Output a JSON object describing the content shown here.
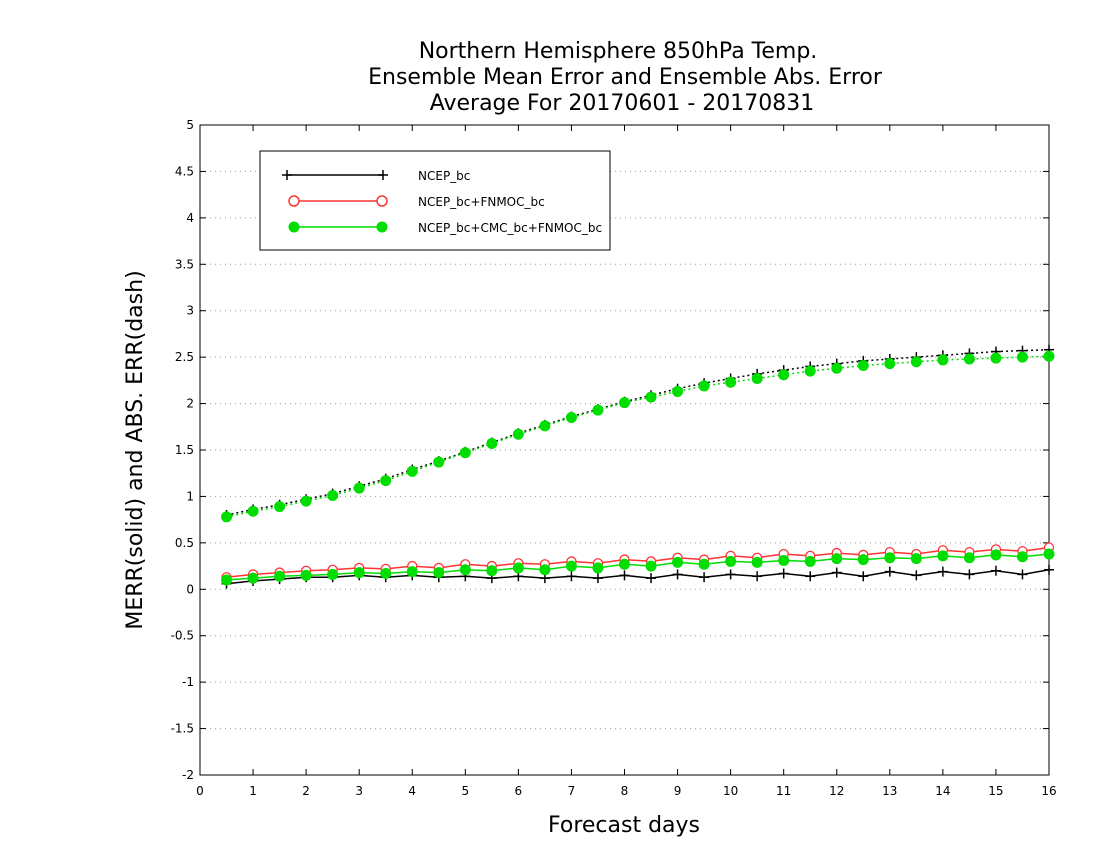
{
  "chart_data": {
    "type": "line",
    "title": [
      "Northern Hemisphere 850hPa Temp.",
      "Ensemble Mean Error and Ensemble Abs. Error",
      "Average For 20170601 - 20170831"
    ],
    "xlabel": "Forecast days",
    "ylabel": "MERR(solid) and ABS. ERR(dash)",
    "xlim": [
      0,
      16
    ],
    "ylim": [
      -2,
      5
    ],
    "x_ticks": [
      "0",
      "1",
      "2",
      "3",
      "4",
      "5",
      "6",
      "7",
      "8",
      "9",
      "10",
      "11",
      "12",
      "13",
      "14",
      "15",
      "16"
    ],
    "y_ticks": [
      "5",
      "4.5",
      "4",
      "3.5",
      "3",
      "2.5",
      "2",
      "1.5",
      "1",
      "0.5",
      "0",
      "-0.5",
      "-1",
      "-1.5",
      "-2"
    ],
    "grid": "dotted horizontal",
    "legend_position": "top-left",
    "x": [
      0.5,
      1,
      1.5,
      2,
      2.5,
      3,
      3.5,
      4,
      4.5,
      5,
      5.5,
      6,
      6.5,
      7,
      7.5,
      8,
      8.5,
      9,
      9.5,
      10,
      10.5,
      11,
      11.5,
      12,
      12.5,
      13,
      13.5,
      14,
      14.5,
      15,
      15.5,
      16
    ],
    "series": [
      {
        "name": "NCEP_bc",
        "color": "#000000",
        "marker": "plus",
        "merr": [
          0.06,
          0.09,
          0.11,
          0.13,
          0.13,
          0.15,
          0.13,
          0.15,
          0.13,
          0.14,
          0.12,
          0.14,
          0.12,
          0.14,
          0.12,
          0.15,
          0.12,
          0.16,
          0.13,
          0.16,
          0.14,
          0.17,
          0.14,
          0.18,
          0.14,
          0.19,
          0.15,
          0.19,
          0.16,
          0.2,
          0.16,
          0.21
        ],
        "abs_err": [
          0.8,
          0.86,
          0.91,
          0.97,
          1.03,
          1.11,
          1.19,
          1.29,
          1.38,
          1.48,
          1.58,
          1.68,
          1.77,
          1.86,
          1.94,
          2.02,
          2.09,
          2.16,
          2.22,
          2.27,
          2.32,
          2.36,
          2.4,
          2.43,
          2.46,
          2.48,
          2.5,
          2.52,
          2.54,
          2.56,
          2.57,
          2.58
        ]
      },
      {
        "name": "NCEP_bc+FNMOC_bc",
        "color": "#ff3333",
        "marker": "open-circle",
        "merr": [
          0.13,
          0.16,
          0.18,
          0.2,
          0.21,
          0.23,
          0.22,
          0.25,
          0.23,
          0.27,
          0.25,
          0.28,
          0.27,
          0.3,
          0.28,
          0.32,
          0.3,
          0.34,
          0.32,
          0.36,
          0.34,
          0.38,
          0.36,
          0.39,
          0.37,
          0.4,
          0.38,
          0.42,
          0.4,
          0.43,
          0.41,
          0.45
        ]
      },
      {
        "name": "NCEP_bc+CMC_bc+FNMOC_bc",
        "color": "#00dd00",
        "marker": "filled-circle",
        "merr": [
          0.1,
          0.12,
          0.14,
          0.15,
          0.16,
          0.18,
          0.17,
          0.19,
          0.18,
          0.21,
          0.2,
          0.23,
          0.21,
          0.25,
          0.23,
          0.27,
          0.25,
          0.29,
          0.27,
          0.3,
          0.29,
          0.31,
          0.3,
          0.33,
          0.32,
          0.34,
          0.33,
          0.36,
          0.34,
          0.37,
          0.35,
          0.38
        ],
        "abs_err": [
          0.78,
          0.84,
          0.89,
          0.95,
          1.01,
          1.09,
          1.17,
          1.27,
          1.37,
          1.47,
          1.57,
          1.67,
          1.76,
          1.85,
          1.93,
          2.01,
          2.07,
          2.13,
          2.19,
          2.23,
          2.27,
          2.31,
          2.35,
          2.38,
          2.41,
          2.43,
          2.45,
          2.47,
          2.48,
          2.49,
          2.5,
          2.51
        ]
      }
    ]
  }
}
